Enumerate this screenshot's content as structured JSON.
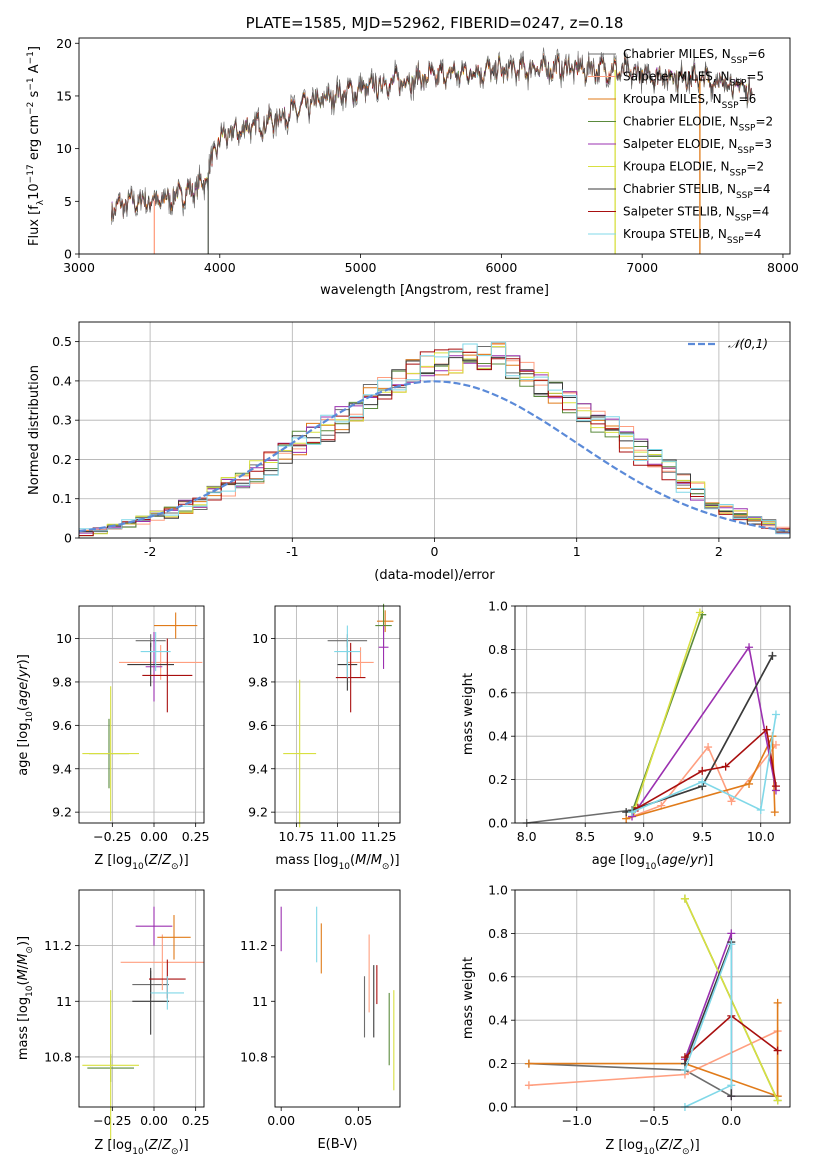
{
  "figure_title": "PLATE=1585, MJD=52962, FIBERID=0247, z=0.18",
  "model_colors": [
    "#6d6d6d",
    "#ff9f80",
    "#e07b1a",
    "#5a8a3c",
    "#9b30b0",
    "#d8e040",
    "#3b3b3b",
    "#a80f0f",
    "#80d8e8"
  ],
  "chart_data": [
    {
      "id": "spectrum",
      "type": "line",
      "title": "PLATE=1585, MJD=52962, FIBERID=0247, z=0.18",
      "xlabel": "wavelength [Angstrom, rest frame]",
      "ylabel": "Flux [f_λ10^-17 erg cm^-2 s^-1 A^-1]",
      "xlim": [
        3000,
        8050
      ],
      "ylim": [
        0,
        20.5
      ],
      "xticks": [
        3000,
        4000,
        5000,
        6000,
        7000,
        8000
      ],
      "yticks": [
        0,
        5,
        10,
        15,
        20
      ],
      "grid": false,
      "legend_position": "upper right",
      "continuum_x": [
        3230,
        3400,
        3600,
        3800,
        3900,
        4000,
        4200,
        4400,
        4600,
        4800,
        5000,
        5200,
        5400,
        5600,
        5800,
        6000,
        6200,
        6400,
        6600,
        6800,
        7000,
        7200,
        7400,
        7600,
        7780
      ],
      "continuum_y": [
        4.3,
        5.0,
        5.1,
        6.0,
        7.0,
        11.0,
        12.0,
        12.8,
        14.0,
        15.0,
        15.6,
        16.3,
        16.6,
        17.0,
        17.3,
        17.4,
        17.6,
        17.7,
        17.6,
        17.5,
        17.0,
        16.9,
        16.7,
        16.2,
        15.6
      ],
      "dropouts": [
        {
          "x": 3535,
          "series": 1
        },
        {
          "x": 3918,
          "series": 3
        },
        {
          "x": 3918,
          "series": 0
        },
        {
          "x": 6808,
          "series": 5
        },
        {
          "x": 7410,
          "series": 2
        }
      ],
      "series": [
        {
          "name": "Chabrier MILES, N_SSP=6"
        },
        {
          "name": "Salpeter MILES, N_SSP=5"
        },
        {
          "name": "Kroupa MILES, N_SSP=6"
        },
        {
          "name": "Chabrier ELODIE, N_SSP=2"
        },
        {
          "name": "Salpeter ELODIE, N_SSP=3"
        },
        {
          "name": "Kroupa ELODIE, N_SSP=2"
        },
        {
          "name": "Chabrier STELIB, N_SSP=4"
        },
        {
          "name": "Salpeter STELIB, N_SSP=4"
        },
        {
          "name": "Kroupa STELIB, N_SSP=4"
        }
      ]
    },
    {
      "id": "residuals",
      "type": "histogram",
      "xlabel": "(data-model)/error",
      "ylabel": "Normed distribution",
      "xlim": [
        -2.5,
        2.5
      ],
      "ylim": [
        0,
        0.55
      ],
      "xticks": [
        -2,
        -1,
        0,
        1,
        2
      ],
      "yticks": [
        0.0,
        0.1,
        0.2,
        0.3,
        0.4,
        0.5
      ],
      "grid": true,
      "legend_position": "upper right",
      "reference_curve": {
        "name": "𝒩(0,1)",
        "mean": 0,
        "sigma": 1,
        "color": "#5b8ad8"
      },
      "bin_width": 0.1,
      "bin_start": -2.5,
      "base_profile": [
        0.015,
        0.02,
        0.025,
        0.035,
        0.045,
        0.055,
        0.065,
        0.08,
        0.09,
        0.11,
        0.13,
        0.15,
        0.17,
        0.19,
        0.21,
        0.24,
        0.26,
        0.28,
        0.3,
        0.33,
        0.36,
        0.38,
        0.4,
        0.43,
        0.44,
        0.45,
        0.45,
        0.47,
        0.46,
        0.47,
        0.44,
        0.42,
        0.39,
        0.37,
        0.34,
        0.33,
        0.3,
        0.28,
        0.25,
        0.22,
        0.2,
        0.17,
        0.14,
        0.12,
        0.09,
        0.075,
        0.06,
        0.045,
        0.035,
        0.02
      ]
    },
    {
      "id": "age-vs-Z",
      "type": "errorbar",
      "xlabel": "Z [log10(Z/Z⊙)]",
      "ylabel": "age [log10(age/yr)]",
      "xlim": [
        -0.45,
        0.3
      ],
      "ylim": [
        9.15,
        10.15
      ],
      "xticks": [
        -0.25,
        0.0,
        0.25
      ],
      "xtick_labels": [
        "−0.25",
        "0.00",
        "0.25"
      ],
      "yticks": [
        9.2,
        9.4,
        9.6,
        9.8,
        10.0
      ],
      "grid": true,
      "points": [
        {
          "x": -0.02,
          "y": 9.99,
          "xerr": 0.09,
          "yerr": 0.03
        },
        {
          "x": 0.04,
          "y": 9.89,
          "xerr": 0.25,
          "yerr": 0.08
        },
        {
          "x": 0.13,
          "y": 10.06,
          "xerr": 0.13,
          "yerr": 0.06
        },
        {
          "x": -0.27,
          "y": 9.47,
          "xerr": 0.12,
          "yerr": 0.16
        },
        {
          "x": 0.0,
          "y": 9.87,
          "xerr": 0.05,
          "yerr": 0.16
        },
        {
          "x": -0.26,
          "y": 9.47,
          "xerr": 0.17,
          "yerr": 0.31
        },
        {
          "x": -0.02,
          "y": 9.88,
          "xerr": 0.14,
          "yerr": 0.1
        },
        {
          "x": 0.08,
          "y": 9.83,
          "xerr": 0.15,
          "yerr": 0.17
        },
        {
          "x": 0.01,
          "y": 9.94,
          "xerr": 0.09,
          "yerr": 0.09
        }
      ]
    },
    {
      "id": "age-vs-mass",
      "type": "errorbar",
      "xlabel": "mass [log10(M/M⊙)]",
      "ylabel": "",
      "xlim": [
        10.62,
        11.38
      ],
      "ylim": [
        9.15,
        10.15
      ],
      "xticks": [
        10.75,
        11.0,
        11.25
      ],
      "xtick_labels": [
        "10.75",
        "11.00",
        "11.25"
      ],
      "yticks": [
        9.2,
        9.4,
        9.6,
        9.8,
        10.0
      ],
      "grid": true,
      "points": [
        {
          "x": 11.06,
          "y": 9.99,
          "xerr": 0.12,
          "yerr": 0.03
        },
        {
          "x": 11.14,
          "y": 9.89,
          "xerr": 0.08,
          "yerr": 0.07
        },
        {
          "x": 11.29,
          "y": 10.08,
          "xerr": 0.05,
          "yerr": 0.05
        },
        {
          "x": 11.28,
          "y": 10.06,
          "xerr": 0.05,
          "yerr": 0.1
        },
        {
          "x": 11.28,
          "y": 9.96,
          "xerr": 0.03,
          "yerr": 0.1
        },
        {
          "x": 10.77,
          "y": 9.47,
          "xerr": 0.1,
          "yerr": 0.34
        },
        {
          "x": 11.06,
          "y": 9.88,
          "xerr": 0.06,
          "yerr": 0.12
        },
        {
          "x": 11.08,
          "y": 9.82,
          "xerr": 0.09,
          "yerr": 0.16
        },
        {
          "x": 11.06,
          "y": 9.94,
          "xerr": 0.08,
          "yerr": 0.12
        }
      ]
    },
    {
      "id": "weight-vs-age",
      "type": "line",
      "xlabel": "age [log10(age/yr)]",
      "ylabel": "mass weight",
      "xlim": [
        7.9,
        10.25
      ],
      "ylim": [
        0,
        1.0
      ],
      "xticks": [
        8.0,
        8.5,
        9.0,
        9.5,
        10.0
      ],
      "xtick_labels": [
        "8.0",
        "8.5",
        "9.0",
        "9.5",
        "10.0"
      ],
      "yticks": [
        0.0,
        0.2,
        0.4,
        0.6,
        0.8,
        1.0
      ],
      "ytick_labels": [
        "0.0",
        "0.2",
        "0.4",
        "0.6",
        "0.8",
        "1.0"
      ],
      "grid": true,
      "series": [
        {
          "x": [
            8.0,
            8.9,
            9.5,
            10.1
          ],
          "y": [
            0.0,
            0.06,
            0.17,
            0.77
          ]
        },
        {
          "x": [
            8.85,
            9.15,
            9.55,
            9.75,
            10.13
          ],
          "y": [
            0.02,
            0.08,
            0.35,
            0.1,
            0.36
          ]
        },
        {
          "x": [
            8.85,
            9.9,
            10.1,
            10.12
          ],
          "y": [
            0.02,
            0.18,
            0.4,
            0.05
          ]
        },
        {
          "x": [
            8.9,
            9.5
          ],
          "y": [
            0.05,
            0.96
          ]
        },
        {
          "x": [
            8.9,
            9.9,
            10.13
          ],
          "y": [
            0.03,
            0.81,
            0.15
          ]
        },
        {
          "x": [
            8.92,
            9.48
          ],
          "y": [
            0.06,
            0.97
          ]
        },
        {
          "x": [
            8.85,
            9.5,
            10.1
          ],
          "y": [
            0.05,
            0.17,
            0.77
          ]
        },
        {
          "x": [
            8.95,
            9.5,
            9.7,
            10.05,
            10.13
          ],
          "y": [
            0.07,
            0.24,
            0.26,
            0.43,
            0.17
          ]
        },
        {
          "x": [
            8.9,
            9.5,
            10.0,
            10.13
          ],
          "y": [
            0.05,
            0.19,
            0.06,
            0.5
          ]
        }
      ]
    },
    {
      "id": "mass-vs-Z",
      "type": "errorbar",
      "xlabel": "Z [log10(Z/Z⊙)]",
      "ylabel": "mass [log10(M/M⊙)]",
      "xlim": [
        -0.45,
        0.3
      ],
      "ylim": [
        10.62,
        11.4
      ],
      "xticks": [
        -0.25,
        0.0,
        0.25
      ],
      "xtick_labels": [
        "−0.25",
        "0.00",
        "0.25"
      ],
      "yticks": [
        10.8,
        11.0,
        11.2
      ],
      "grid": true,
      "points": [
        {
          "x": -0.02,
          "y": 11.06,
          "xerr": 0.11,
          "yerr": 0.05
        },
        {
          "x": 0.05,
          "y": 11.14,
          "xerr": 0.25,
          "yerr": 0.1
        },
        {
          "x": 0.12,
          "y": 11.23,
          "xerr": 0.1,
          "yerr": 0.08
        },
        {
          "x": -0.26,
          "y": 10.76,
          "xerr": 0.14,
          "yerr": 0.05
        },
        {
          "x": 0.0,
          "y": 11.27,
          "xerr": 0.11,
          "yerr": 0.07
        },
        {
          "x": -0.26,
          "y": 10.77,
          "xerr": 0.17,
          "yerr": 0.27
        },
        {
          "x": -0.02,
          "y": 11.0,
          "xerr": 0.11,
          "yerr": 0.12
        },
        {
          "x": 0.08,
          "y": 11.08,
          "xerr": 0.11,
          "yerr": 0.07
        },
        {
          "x": 0.08,
          "y": 11.03,
          "xerr": 0.1,
          "yerr": 0.06
        }
      ]
    },
    {
      "id": "mass-vs-ebv",
      "type": "errorbar",
      "xlabel": "E(B-V)",
      "ylabel": "",
      "xlim": [
        -0.004,
        0.077
      ],
      "ylim": [
        10.62,
        11.4
      ],
      "xticks": [
        0.0,
        0.05
      ],
      "xtick_labels": [
        "0.00",
        "0.05"
      ],
      "yticks": [
        10.8,
        11.0,
        11.2
      ],
      "grid": false,
      "points": [
        {
          "x": 0.054,
          "y": 10.98,
          "xerr": 0,
          "yerr": 0.11
        },
        {
          "x": 0.057,
          "y": 11.1,
          "xerr": 0,
          "yerr": 0.14
        },
        {
          "x": 0.026,
          "y": 11.19,
          "xerr": 0,
          "yerr": 0.09
        },
        {
          "x": 0.07,
          "y": 10.9,
          "xerr": 0,
          "yerr": 0.13
        },
        {
          "x": 0.0,
          "y": 11.26,
          "xerr": 0,
          "yerr": 0.08
        },
        {
          "x": 0.073,
          "y": 10.86,
          "xerr": 0,
          "yerr": 0.18
        },
        {
          "x": 0.06,
          "y": 11.0,
          "xerr": 0,
          "yerr": 0.13
        },
        {
          "x": 0.062,
          "y": 11.06,
          "xerr": 0,
          "yerr": 0.07
        },
        {
          "x": 0.023,
          "y": 11.24,
          "xerr": 0,
          "yerr": 0.1
        }
      ]
    },
    {
      "id": "weight-vs-Z",
      "type": "line",
      "xlabel": "Z [log10(Z/Z⊙)]",
      "ylabel": "mass weight",
      "xlim": [
        -1.4,
        0.38
      ],
      "ylim": [
        0,
        1.0
      ],
      "xticks": [
        -1.0,
        -0.5,
        0.0
      ],
      "xtick_labels": [
        "−1.0",
        "−0.5",
        "0.0"
      ],
      "yticks": [
        0.0,
        0.2,
        0.4,
        0.6,
        0.8,
        1.0
      ],
      "ytick_labels": [
        "0.0",
        "0.2",
        "0.4",
        "0.6",
        "0.8",
        "1.0"
      ],
      "grid": true,
      "series": [
        {
          "x": [
            -1.31,
            -0.3,
            0.0,
            0.3
          ],
          "y": [
            0.2,
            0.17,
            0.05,
            0.05
          ]
        },
        {
          "x": [
            -1.31,
            -0.3,
            0.3,
            0.3
          ],
          "y": [
            0.1,
            0.15,
            0.35,
            0.05
          ]
        },
        {
          "x": [
            -1.31,
            -0.3,
            0.3,
            0.3
          ],
          "y": [
            0.2,
            0.2,
            0.05,
            0.48
          ]
        },
        {
          "x": [
            -0.3,
            0.3
          ],
          "y": [
            0.96,
            0.03
          ]
        },
        {
          "x": [
            -0.3,
            0.0,
            0.0
          ],
          "y": [
            0.22,
            0.8,
            0.05
          ]
        },
        {
          "x": [
            -0.3,
            0.3
          ],
          "y": [
            0.96,
            0.03
          ]
        },
        {
          "x": [
            -0.3,
            0.0,
            0.0
          ],
          "y": [
            0.2,
            0.76,
            0.05
          ]
        },
        {
          "x": [
            -0.3,
            0.0,
            0.3
          ],
          "y": [
            0.23,
            0.42,
            0.26
          ]
        },
        {
          "x": [
            -0.3,
            0.0,
            0.0,
            -0.3
          ],
          "y": [
            0.0,
            0.1,
            0.75,
            0.17
          ]
        }
      ]
    }
  ]
}
